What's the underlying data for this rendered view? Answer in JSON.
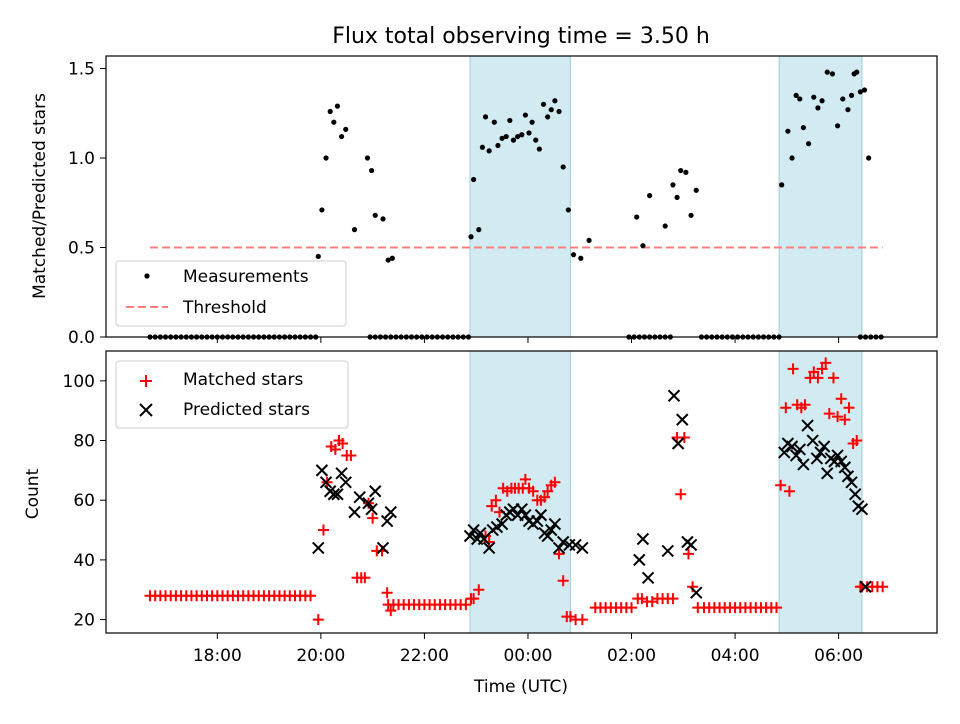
{
  "chart_data": {
    "type": "scatter",
    "title": "Flux total observing time = 3.50 h",
    "xlabel": "Time (UTC)",
    "x_unit": "hours since 00:00 UTC",
    "x_range": [
      -8.15,
      7.9
    ],
    "x_ticks": [
      {
        "v": -6,
        "label": "18:00"
      },
      {
        "v": -4,
        "label": "20:00"
      },
      {
        "v": -2,
        "label": "22:00"
      },
      {
        "v": 0,
        "label": "00:00"
      },
      {
        "v": 2,
        "label": "02:00"
      },
      {
        "v": 4,
        "label": "04:00"
      },
      {
        "v": 6,
        "label": "06:00"
      }
    ],
    "shaded_spans": [
      [
        -1.12,
        0.82
      ],
      [
        4.85,
        6.45
      ]
    ],
    "shade_color": "#add8e6",
    "top": {
      "ylabel": "Matched/Predicted stars",
      "ylim": [
        0,
        1.57
      ],
      "y_ticks": [
        {
          "v": 0,
          "label": "0.0"
        },
        {
          "v": 0.5,
          "label": "0.5"
        },
        {
          "v": 1.0,
          "label": "1.0"
        },
        {
          "v": 1.5,
          "label": "1.5"
        }
      ],
      "legend": {
        "position": "lower-left",
        "entries": [
          "Measurements",
          "Threshold"
        ]
      },
      "threshold": {
        "value": 0.5,
        "x": [
          -7.3,
          6.85
        ],
        "color": "#ff7f7f"
      },
      "measurements": {
        "name": "Measurements",
        "color": "#000000",
        "zero_x_ranges": [
          [
            -7.3,
            -4.08
          ],
          [
            -3.05,
            -2.55
          ],
          [
            -2.45,
            -1.15
          ],
          [
            1.95,
            2.45
          ],
          [
            2.55,
            2.75
          ],
          [
            3.35,
            4.85
          ],
          [
            6.42,
            6.85
          ]
        ],
        "points": [
          [
            -4.05,
            0.45
          ],
          [
            -3.98,
            0.71
          ],
          [
            -3.9,
            1.0
          ],
          [
            -3.82,
            1.26
          ],
          [
            -3.75,
            1.2
          ],
          [
            -3.68,
            1.29
          ],
          [
            -3.6,
            1.12
          ],
          [
            -3.52,
            1.16
          ],
          [
            -3.35,
            0.6
          ],
          [
            -3.1,
            1.0
          ],
          [
            -3.02,
            0.93
          ],
          [
            -2.95,
            0.68
          ],
          [
            -2.8,
            0.66
          ],
          [
            -2.7,
            0.43
          ],
          [
            -2.62,
            0.44
          ],
          [
            -1.1,
            0.56
          ],
          [
            -1.05,
            0.88
          ],
          [
            -0.95,
            0.6
          ],
          [
            -0.88,
            1.06
          ],
          [
            -0.82,
            1.23
          ],
          [
            -0.75,
            1.04
          ],
          [
            -0.65,
            1.2
          ],
          [
            -0.58,
            1.07
          ],
          [
            -0.5,
            1.11
          ],
          [
            -0.42,
            1.12
          ],
          [
            -0.35,
            1.21
          ],
          [
            -0.28,
            1.1
          ],
          [
            -0.2,
            1.12
          ],
          [
            -0.12,
            1.13
          ],
          [
            -0.05,
            1.24
          ],
          [
            0.02,
            1.14
          ],
          [
            0.08,
            1.2
          ],
          [
            0.15,
            1.1
          ],
          [
            0.22,
            1.05
          ],
          [
            0.3,
            1.3
          ],
          [
            0.38,
            1.23
          ],
          [
            0.45,
            1.27
          ],
          [
            0.52,
            1.32
          ],
          [
            0.6,
            1.26
          ],
          [
            0.68,
            0.95
          ],
          [
            0.78,
            0.71
          ],
          [
            0.88,
            0.46
          ],
          [
            1.02,
            0.44
          ],
          [
            1.18,
            0.54
          ],
          [
            2.1,
            0.67
          ],
          [
            2.22,
            0.51
          ],
          [
            2.35,
            0.79
          ],
          [
            2.65,
            0.62
          ],
          [
            2.8,
            0.85
          ],
          [
            2.88,
            0.78
          ],
          [
            2.95,
            0.93
          ],
          [
            3.05,
            0.92
          ],
          [
            3.15,
            0.68
          ],
          [
            3.25,
            0.82
          ],
          [
            4.9,
            0.85
          ],
          [
            5.02,
            1.15
          ],
          [
            5.1,
            1.0
          ],
          [
            5.18,
            1.35
          ],
          [
            5.25,
            1.33
          ],
          [
            5.32,
            1.17
          ],
          [
            5.42,
            1.08
          ],
          [
            5.52,
            1.34
          ],
          [
            5.6,
            1.28
          ],
          [
            5.68,
            1.32
          ],
          [
            5.78,
            1.48
          ],
          [
            5.88,
            1.47
          ],
          [
            5.98,
            1.18
          ],
          [
            6.08,
            1.33
          ],
          [
            6.18,
            1.27
          ],
          [
            6.25,
            1.35
          ],
          [
            6.3,
            1.47
          ],
          [
            6.35,
            1.48
          ],
          [
            6.42,
            1.37
          ],
          [
            6.5,
            1.38
          ],
          [
            6.58,
            1.0
          ]
        ]
      }
    },
    "bottom": {
      "ylabel": "Count",
      "ylim": [
        15.5,
        110
      ],
      "y_ticks": [
        {
          "v": 20,
          "label": "20"
        },
        {
          "v": 40,
          "label": "40"
        },
        {
          "v": 60,
          "label": "60"
        },
        {
          "v": 80,
          "label": "80"
        },
        {
          "v": 100,
          "label": "100"
        }
      ],
      "legend": {
        "position": "upper-left",
        "entries": [
          "Matched stars",
          "Predicted stars"
        ]
      },
      "matched": {
        "name": "Matched stars",
        "color": "#ff0000",
        "level_runs": [
          [
            -7.3,
            -4.15,
            28
          ],
          [
            -2.7,
            -1.15,
            25
          ],
          [
            1.3,
            2.05,
            24
          ],
          [
            3.4,
            4.85,
            24
          ],
          [
            6.45,
            6.85,
            31
          ]
        ],
        "points": [
          [
            -4.05,
            20
          ],
          [
            -3.95,
            50
          ],
          [
            -3.88,
            66
          ],
          [
            -3.8,
            78
          ],
          [
            -3.72,
            77
          ],
          [
            -3.65,
            80
          ],
          [
            -3.58,
            79
          ],
          [
            -3.5,
            75
          ],
          [
            -3.42,
            75
          ],
          [
            -3.3,
            34
          ],
          [
            -3.22,
            34
          ],
          [
            -3.15,
            34
          ],
          [
            -3.08,
            59
          ],
          [
            -3.0,
            54
          ],
          [
            -2.92,
            43
          ],
          [
            -2.82,
            43
          ],
          [
            -2.72,
            29
          ],
          [
            -2.65,
            23
          ],
          [
            -1.1,
            27
          ],
          [
            -1.05,
            27
          ],
          [
            -0.95,
            30
          ],
          [
            -0.82,
            48
          ],
          [
            -0.75,
            46
          ],
          [
            -0.7,
            58
          ],
          [
            -0.62,
            60
          ],
          [
            -0.55,
            56
          ],
          [
            -0.48,
            64
          ],
          [
            -0.4,
            63
          ],
          [
            -0.32,
            64
          ],
          [
            -0.25,
            64
          ],
          [
            -0.18,
            64
          ],
          [
            -0.1,
            64
          ],
          [
            -0.05,
            67
          ],
          [
            0.02,
            64
          ],
          [
            0.1,
            63
          ],
          [
            0.18,
            60
          ],
          [
            0.25,
            60
          ],
          [
            0.32,
            61
          ],
          [
            0.38,
            63
          ],
          [
            0.45,
            65
          ],
          [
            0.52,
            66
          ],
          [
            0.6,
            42
          ],
          [
            0.68,
            33
          ],
          [
            0.75,
            21
          ],
          [
            0.82,
            21
          ],
          [
            0.92,
            20
          ],
          [
            1.05,
            20
          ],
          [
            2.12,
            27
          ],
          [
            2.2,
            27
          ],
          [
            2.3,
            26
          ],
          [
            2.4,
            26
          ],
          [
            2.5,
            27
          ],
          [
            2.6,
            27
          ],
          [
            2.7,
            27
          ],
          [
            2.8,
            27
          ],
          [
            2.88,
            81
          ],
          [
            2.95,
            62
          ],
          [
            3.02,
            81
          ],
          [
            3.1,
            42
          ],
          [
            3.18,
            31
          ],
          [
            3.28,
            24
          ],
          [
            4.88,
            65
          ],
          [
            4.98,
            91
          ],
          [
            5.05,
            63
          ],
          [
            5.12,
            104
          ],
          [
            5.2,
            92
          ],
          [
            5.28,
            91
          ],
          [
            5.35,
            92
          ],
          [
            5.45,
            101
          ],
          [
            5.52,
            103
          ],
          [
            5.6,
            101
          ],
          [
            5.68,
            104
          ],
          [
            5.75,
            106
          ],
          [
            5.82,
            89
          ],
          [
            5.9,
            101
          ],
          [
            5.98,
            88
          ],
          [
            6.05,
            94
          ],
          [
            6.12,
            87
          ],
          [
            6.2,
            91
          ],
          [
            6.28,
            79
          ],
          [
            6.35,
            80
          ],
          [
            6.42,
            31
          ]
        ]
      },
      "predicted": {
        "name": "Predicted stars",
        "color": "#000000",
        "points": [
          [
            -4.05,
            44
          ],
          [
            -3.98,
            70
          ],
          [
            -3.9,
            66
          ],
          [
            -3.82,
            63
          ],
          [
            -3.75,
            62
          ],
          [
            -3.68,
            62
          ],
          [
            -3.6,
            69
          ],
          [
            -3.52,
            66
          ],
          [
            -3.35,
            56
          ],
          [
            -3.25,
            61
          ],
          [
            -3.08,
            59
          ],
          [
            -3.02,
            57
          ],
          [
            -2.95,
            63
          ],
          [
            -2.8,
            44
          ],
          [
            -2.72,
            53
          ],
          [
            -2.65,
            56
          ],
          [
            -1.12,
            48
          ],
          [
            -1.05,
            50
          ],
          [
            -0.98,
            47
          ],
          [
            -0.92,
            49
          ],
          [
            -0.85,
            47
          ],
          [
            -0.75,
            44
          ],
          [
            -0.68,
            50
          ],
          [
            -0.6,
            51
          ],
          [
            -0.5,
            52
          ],
          [
            -0.42,
            55
          ],
          [
            -0.35,
            56
          ],
          [
            -0.28,
            57
          ],
          [
            -0.2,
            55
          ],
          [
            -0.12,
            57
          ],
          [
            -0.05,
            55
          ],
          [
            0.02,
            53
          ],
          [
            0.1,
            52
          ],
          [
            0.18,
            53
          ],
          [
            0.25,
            55
          ],
          [
            0.32,
            49
          ],
          [
            0.38,
            48
          ],
          [
            0.45,
            50
          ],
          [
            0.52,
            52
          ],
          [
            0.6,
            44
          ],
          [
            0.68,
            46
          ],
          [
            0.8,
            45
          ],
          [
            0.92,
            45
          ],
          [
            1.05,
            44
          ],
          [
            2.15,
            40
          ],
          [
            2.22,
            47
          ],
          [
            2.32,
            34
          ],
          [
            2.7,
            43
          ],
          [
            2.82,
            95
          ],
          [
            2.9,
            79
          ],
          [
            2.98,
            87
          ],
          [
            3.08,
            46
          ],
          [
            3.15,
            45
          ],
          [
            3.25,
            29
          ],
          [
            4.95,
            76
          ],
          [
            5.02,
            79
          ],
          [
            5.1,
            78
          ],
          [
            5.18,
            75
          ],
          [
            5.25,
            77
          ],
          [
            5.32,
            72
          ],
          [
            5.4,
            85
          ],
          [
            5.5,
            80
          ],
          [
            5.58,
            74
          ],
          [
            5.65,
            76
          ],
          [
            5.72,
            78
          ],
          [
            5.78,
            69
          ],
          [
            5.85,
            74
          ],
          [
            5.92,
            73
          ],
          [
            5.98,
            75
          ],
          [
            6.05,
            73
          ],
          [
            6.12,
            71
          ],
          [
            6.18,
            68
          ],
          [
            6.25,
            66
          ],
          [
            6.32,
            62
          ],
          [
            6.38,
            58
          ],
          [
            6.45,
            57
          ],
          [
            6.52,
            31
          ]
        ]
      }
    }
  }
}
